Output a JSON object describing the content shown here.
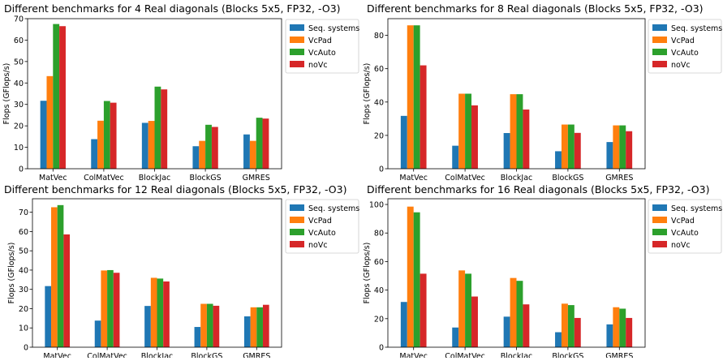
{
  "chart_data": [
    {
      "type": "bar",
      "title": "Different benchmarks for 4 Real diagonals (Blocks 5x5, FP32, -O3)",
      "xlabel": "",
      "ylabel": "Flops (GFlops/s)",
      "categories": [
        "MatVec",
        "ColMatVec",
        "BlockJac",
        "BlockGS",
        "GMRES"
      ],
      "ylim": [
        0,
        70
      ],
      "yticks": [
        0,
        10,
        20,
        30,
        40,
        50,
        60,
        70
      ],
      "legend_position": "right-outside",
      "grid": false,
      "series": [
        {
          "name": "Seq. systems",
          "color": "#1f77b4",
          "values": [
            31.7,
            13.8,
            21.4,
            10.5,
            16.0
          ]
        },
        {
          "name": "VcPad",
          "color": "#ff7f0e",
          "values": [
            43.2,
            22.4,
            22.3,
            13.0,
            13.0
          ]
        },
        {
          "name": "VcAuto",
          "color": "#2ca02c",
          "values": [
            67.5,
            31.6,
            38.3,
            20.5,
            23.8
          ]
        },
        {
          "name": "noVc",
          "color": "#d62728",
          "values": [
            66.5,
            30.8,
            37.0,
            19.5,
            23.4
          ]
        }
      ]
    },
    {
      "type": "bar",
      "title": "Different benchmarks for 8 Real diagonals (Blocks 5x5, FP32, -O3)",
      "xlabel": "",
      "ylabel": "Flops (GFlops/s)",
      "categories": [
        "MatVec",
        "ColMatVec",
        "BlockJac",
        "BlockGS",
        "GMRES"
      ],
      "ylim": [
        0,
        90
      ],
      "yticks": [
        0,
        20,
        40,
        60,
        80
      ],
      "legend_position": "right-outside",
      "grid": false,
      "series": [
        {
          "name": "Seq. systems",
          "color": "#1f77b4",
          "values": [
            31.7,
            13.8,
            21.4,
            10.5,
            16.0
          ]
        },
        {
          "name": "VcPad",
          "color": "#ff7f0e",
          "values": [
            86.0,
            45.0,
            44.7,
            26.5,
            26.0
          ]
        },
        {
          "name": "VcAuto",
          "color": "#2ca02c",
          "values": [
            86.0,
            45.0,
            44.7,
            26.5,
            26.0
          ]
        },
        {
          "name": "noVc",
          "color": "#d62728",
          "values": [
            62.0,
            38.0,
            35.5,
            21.5,
            22.5
          ]
        }
      ]
    },
    {
      "type": "bar",
      "title": "Different benchmarks for 12 Real diagonals (Blocks 5x5, FP32, -O3)",
      "xlabel": "",
      "ylabel": "Flops (GFlops/s)",
      "categories": [
        "MatVec",
        "ColMatVec",
        "BlockJac",
        "BlockGS",
        "GMRES"
      ],
      "ylim": [
        0,
        77
      ],
      "yticks": [
        0,
        10,
        20,
        30,
        40,
        50,
        60,
        70
      ],
      "legend_position": "right-outside",
      "grid": false,
      "series": [
        {
          "name": "Seq. systems",
          "color": "#1f77b4",
          "values": [
            31.7,
            13.8,
            21.4,
            10.5,
            16.0
          ]
        },
        {
          "name": "VcPad",
          "color": "#ff7f0e",
          "values": [
            72.6,
            39.8,
            36.0,
            22.5,
            20.7
          ]
        },
        {
          "name": "VcAuto",
          "color": "#2ca02c",
          "values": [
            73.7,
            40.0,
            35.6,
            22.5,
            20.7
          ]
        },
        {
          "name": "noVc",
          "color": "#d62728",
          "values": [
            58.5,
            38.6,
            34.1,
            21.5,
            22.0
          ]
        }
      ]
    },
    {
      "type": "bar",
      "title": "Different benchmarks for 16 Real diagonals (Blocks 5x5, FP32, -O3)",
      "xlabel": "",
      "ylabel": "Flops (GFlops/s)",
      "categories": [
        "MatVec",
        "ColMatVec",
        "BlockJac",
        "BlockGS",
        "GMRES"
      ],
      "ylim": [
        0,
        104
      ],
      "yticks": [
        0,
        20,
        40,
        60,
        80,
        100
      ],
      "legend_position": "right-outside",
      "grid": false,
      "series": [
        {
          "name": "Seq. systems",
          "color": "#1f77b4",
          "values": [
            31.7,
            13.8,
            21.4,
            10.5,
            16.0
          ]
        },
        {
          "name": "VcPad",
          "color": "#ff7f0e",
          "values": [
            98.5,
            53.8,
            48.5,
            30.5,
            28.0
          ]
        },
        {
          "name": "VcAuto",
          "color": "#2ca02c",
          "values": [
            94.5,
            51.5,
            46.5,
            29.5,
            27.0
          ]
        },
        {
          "name": "noVc",
          "color": "#d62728",
          "values": [
            51.5,
            35.5,
            30.0,
            20.5,
            20.5
          ]
        }
      ]
    }
  ]
}
